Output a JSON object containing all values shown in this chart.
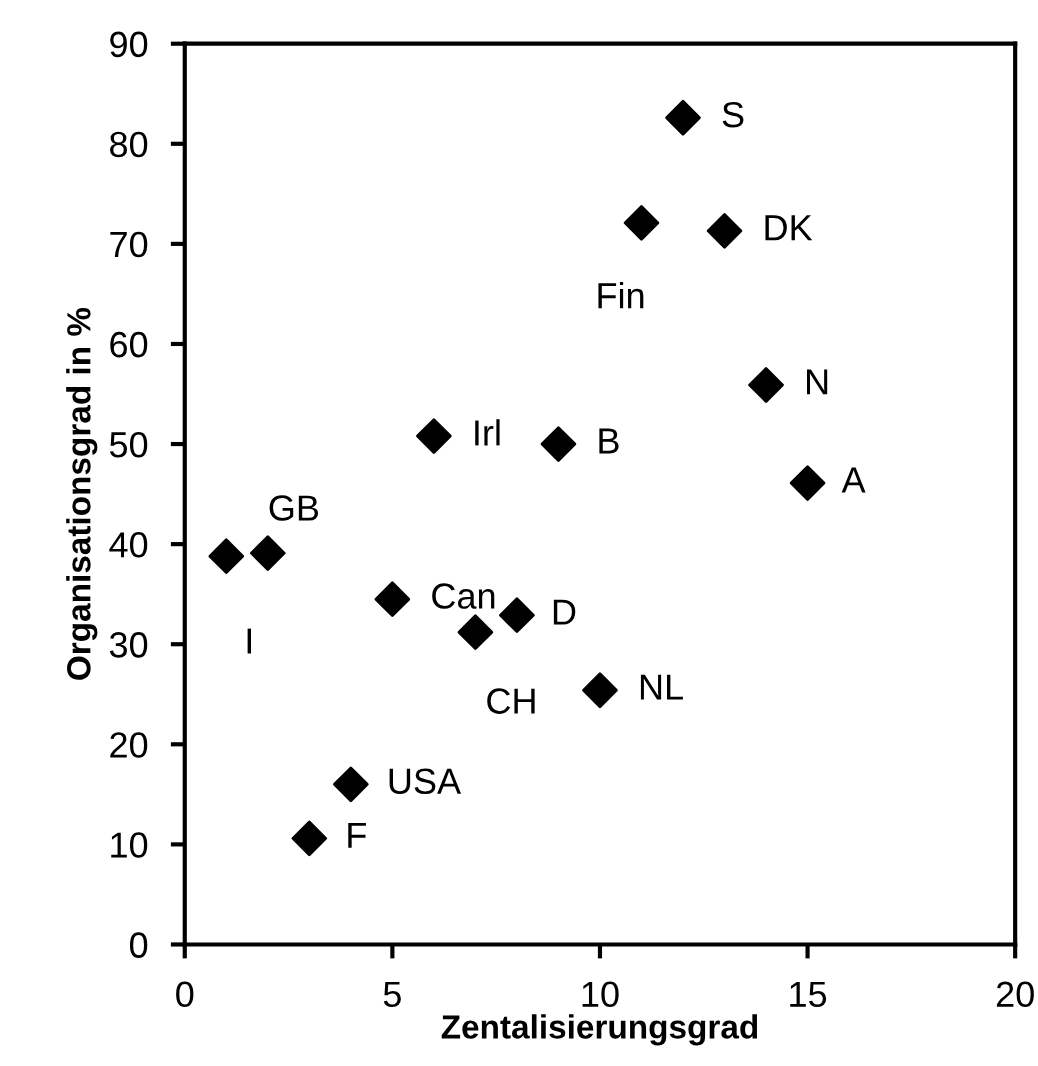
{
  "chart_data": {
    "type": "scatter",
    "xlabel": "Zentalisierungsgrad",
    "ylabel": "Organisationsgrad in %",
    "x": [
      1,
      2,
      3,
      4,
      5,
      6,
      7,
      8,
      9,
      10,
      11,
      12,
      13,
      14,
      15
    ],
    "series": [
      {
        "color": "#000000",
        "values": [
          38.8,
          39.1,
          10.6,
          16.0,
          34.5,
          50.8,
          31.2,
          32.9,
          50.0,
          25.4,
          72.1,
          82.6,
          71.3,
          55.9,
          46.1
        ]
      }
    ],
    "marker": "diamond",
    "grid": false,
    "legend": false,
    "xlim": [
      0,
      20
    ],
    "xticks": [
      0,
      5,
      10,
      15,
      20
    ],
    "ylim": [
      0,
      90
    ],
    "yticks": [
      0,
      10,
      20,
      30,
      40,
      50,
      60,
      70,
      80,
      90
    ],
    "annotations": [
      {
        "text": "I",
        "x": 1,
        "y": 38.8
      },
      {
        "text": "GB",
        "x": 2,
        "y": 39.1
      },
      {
        "text": "F",
        "x": 3,
        "y": 10.6
      },
      {
        "text": "USA",
        "x": 4,
        "y": 16.0
      },
      {
        "text": "Can",
        "x": 5,
        "y": 34.5
      },
      {
        "text": "Irl",
        "x": 6,
        "y": 50.8
      },
      {
        "text": "CH",
        "x": 7,
        "y": 31.2
      },
      {
        "text": "D",
        "x": 8,
        "y": 32.9
      },
      {
        "text": "B",
        "x": 9,
        "y": 50.0
      },
      {
        "text": "NL",
        "x": 10,
        "y": 25.4
      },
      {
        "text": "Fin",
        "x": 11,
        "y": 72.1
      },
      {
        "text": "S",
        "x": 12,
        "y": 82.6
      },
      {
        "text": "DK",
        "x": 13,
        "y": 71.3
      },
      {
        "text": "N",
        "x": 14,
        "y": 55.9
      },
      {
        "text": "A",
        "x": 15,
        "y": 46.1
      }
    ]
  }
}
